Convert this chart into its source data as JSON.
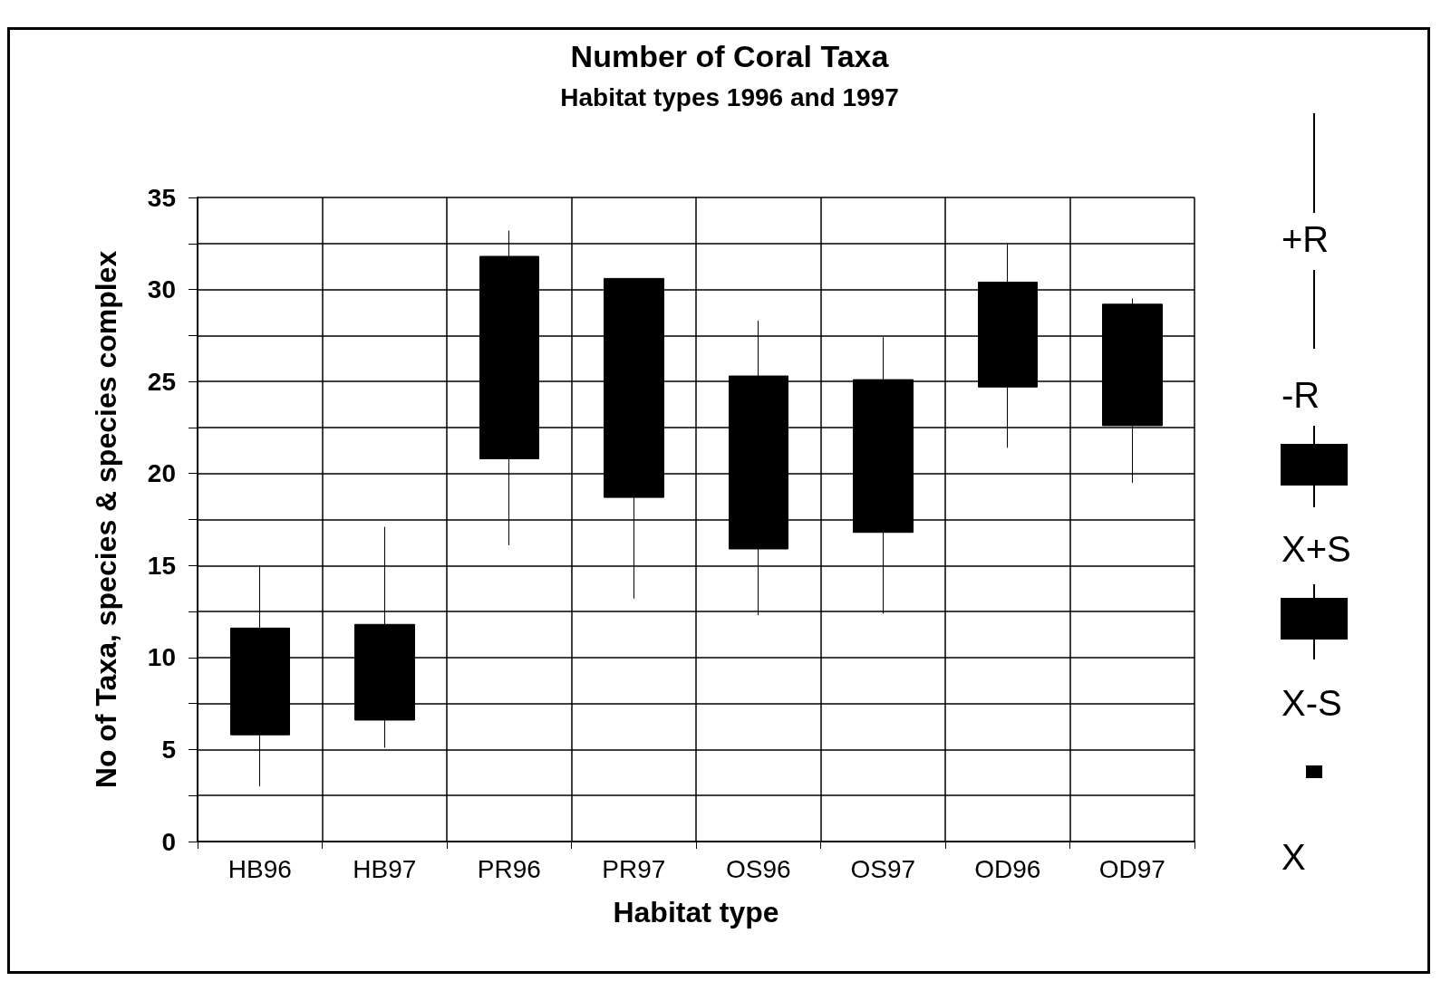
{
  "chart_data": {
    "type": "candlestick",
    "title": "Number of Coral Taxa",
    "subtitle": "Habitat types 1996 and 1997",
    "xlabel": "Habitat type",
    "ylabel": "No of Taxa, species & species complex",
    "categories": [
      "HB96",
      "HB97",
      "PR96",
      "PR97",
      "OS96",
      "OS97",
      "OD96",
      "OD97"
    ],
    "ohlc": [
      [
        11.6,
        15,
        3,
        5.8
      ],
      [
        11.8,
        17.1,
        5.1,
        6.6
      ],
      [
        31.8,
        33.2,
        16.1,
        20.8
      ],
      [
        30.6,
        30.6,
        13.2,
        18.7
      ],
      [
        25.3,
        28.3,
        12.3,
        15.9
      ],
      [
        25.1,
        27.4,
        12.4,
        16.8
      ],
      [
        30.4,
        32.5,
        21.4,
        24.7
      ],
      [
        29.2,
        29.5,
        19.5,
        22.6
      ]
    ],
    "color": "#000000",
    "ylim": [
      0,
      35
    ],
    "yticks": [
      0,
      {
        "value": 2.5,
        "label": null
      },
      5,
      {
        "value": 7.5,
        "label": null
      },
      10,
      {
        "value": 12.5,
        "label": null
      },
      15,
      {
        "value": 17.5,
        "label": null
      },
      20,
      {
        "value": 22.5,
        "label": null
      },
      25,
      {
        "value": 27.5,
        "label": null
      },
      30,
      {
        "value": 32.5,
        "label": null
      },
      35
    ],
    "grid": true,
    "annotations": [
      "+R",
      "-R",
      "X+S",
      "X-S",
      "X"
    ]
  }
}
